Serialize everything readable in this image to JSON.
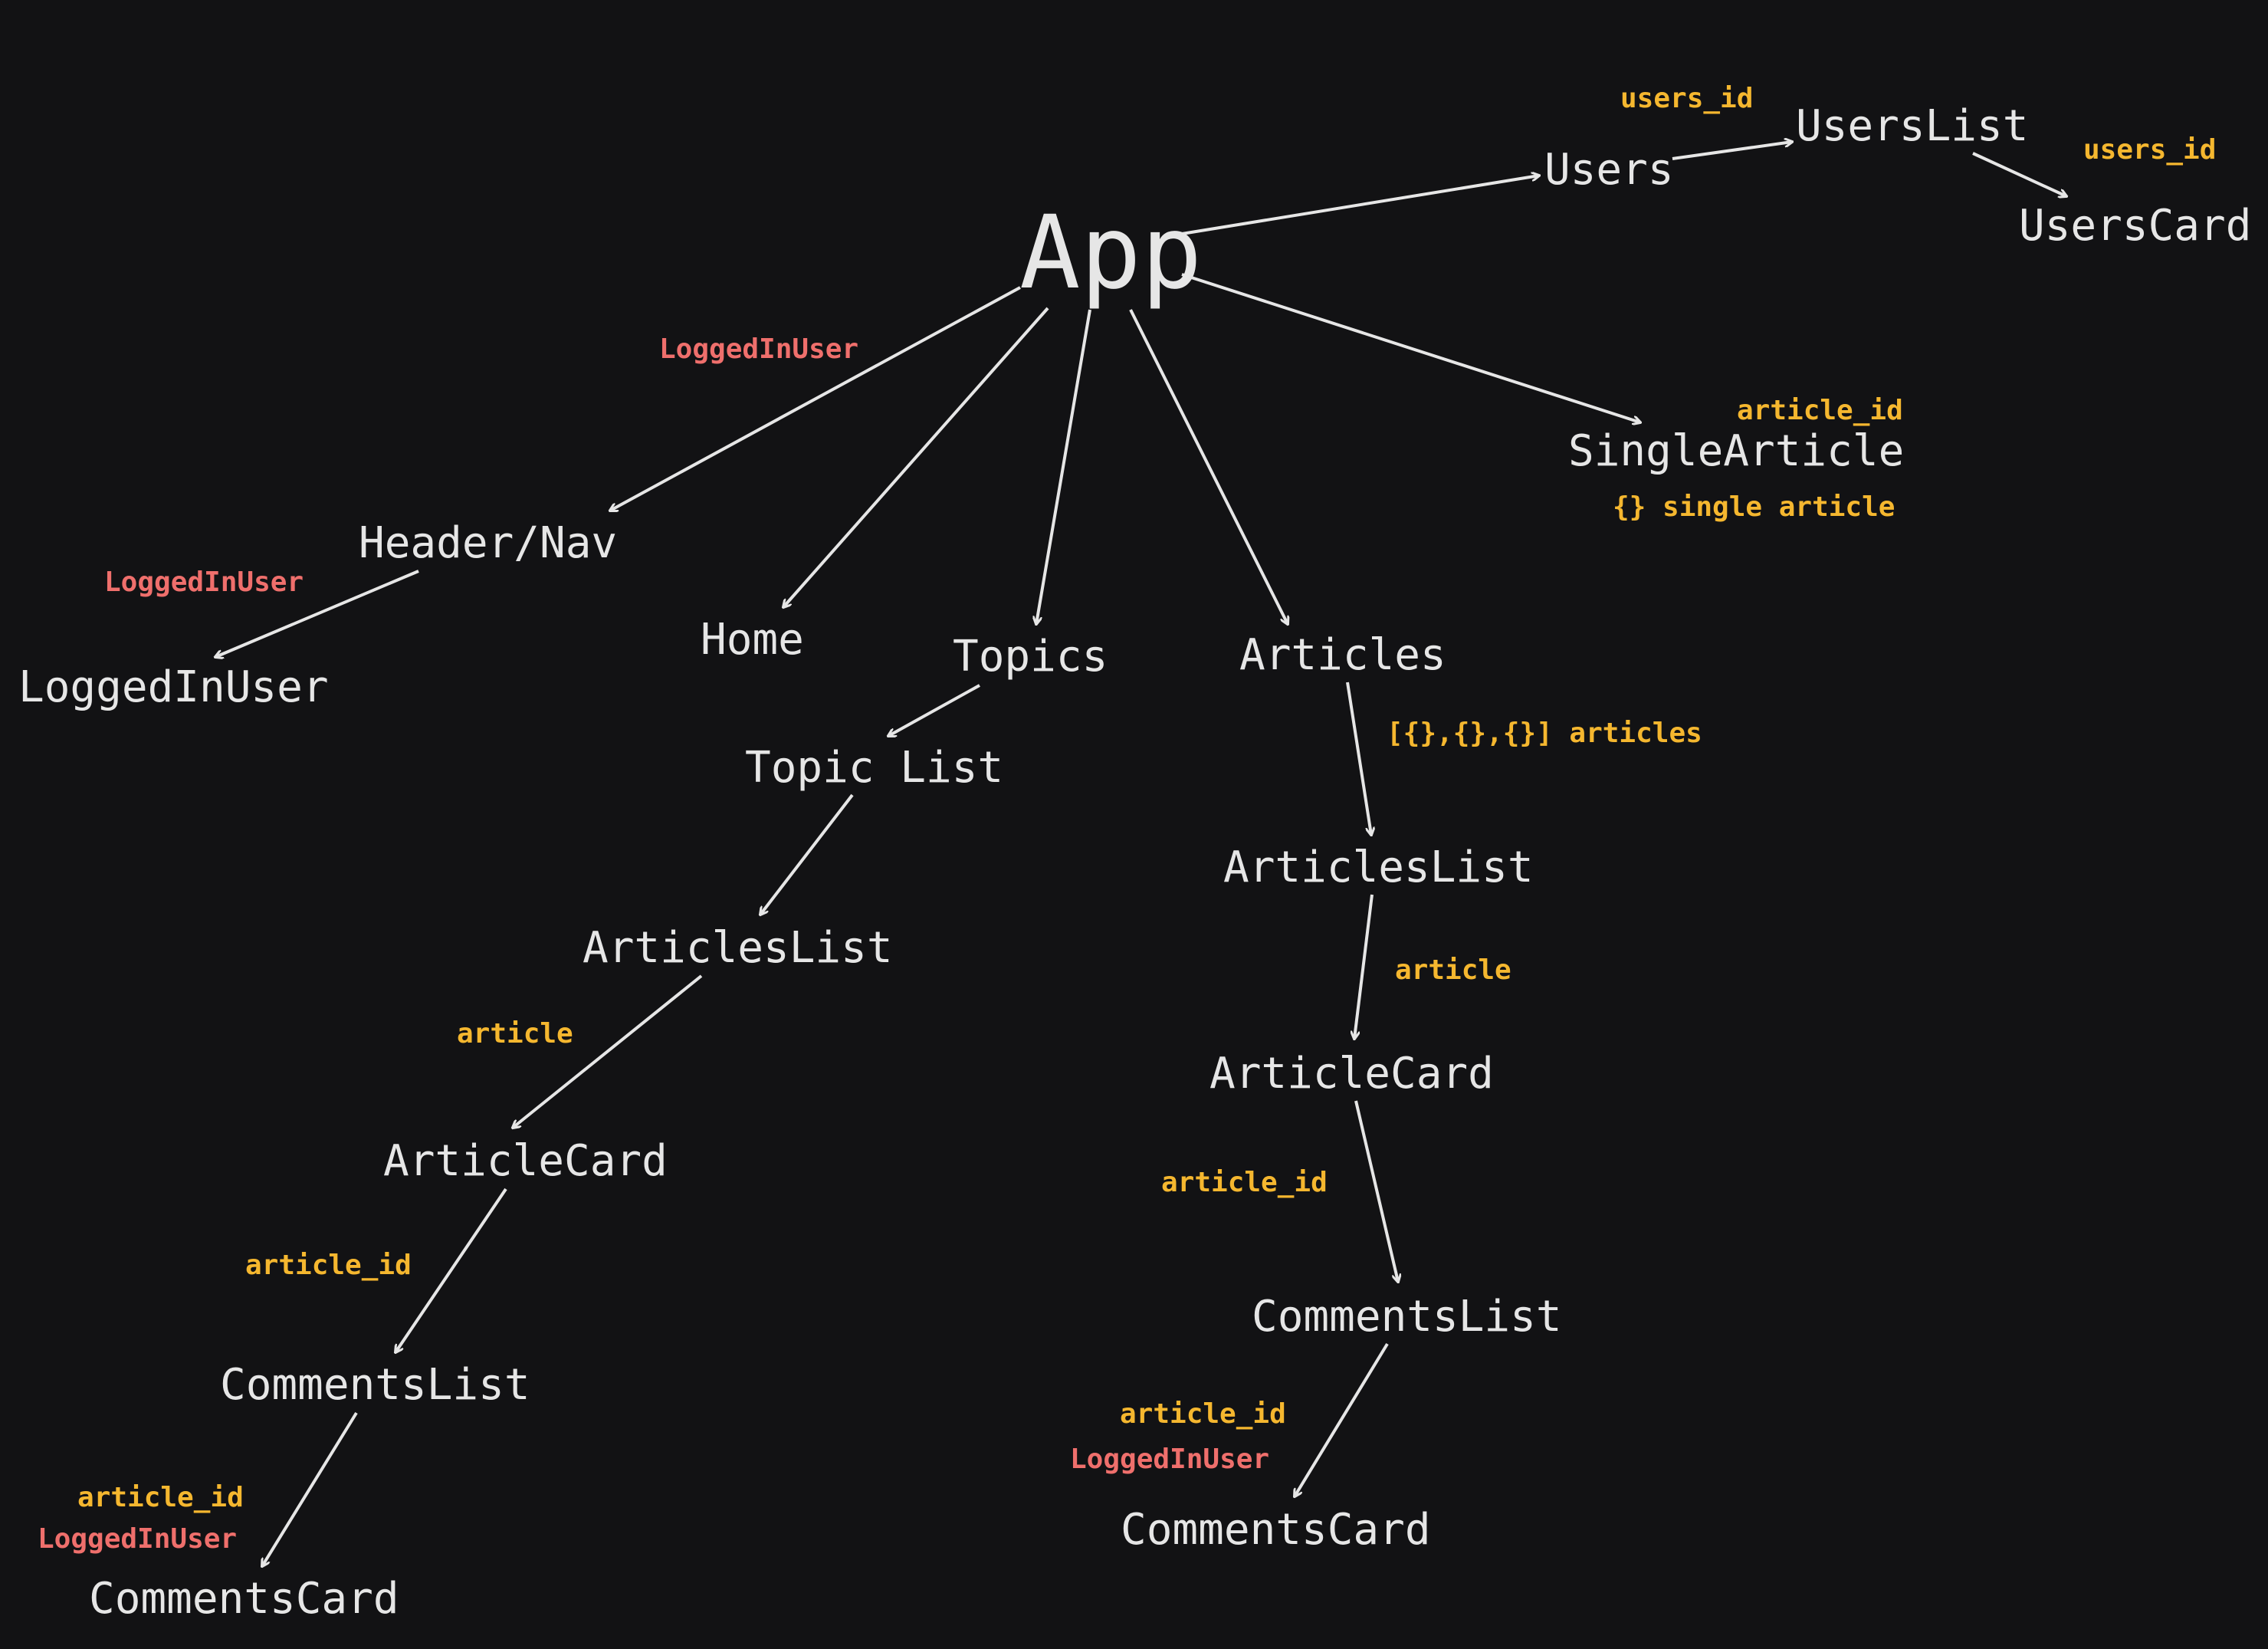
{
  "colors": {
    "background": "#121214",
    "node_text": "#e6e6e6",
    "prop_label": "#f5b72f",
    "user_label": "#ef6f6c",
    "edge": "#e6e6e6"
  },
  "nodes": {
    "app": "App",
    "users": "Users",
    "users_list": "UsersList",
    "users_card": "UsersCard",
    "single_article": "SingleArticle",
    "header_nav": "Header/Nav",
    "logged_in_user": "LoggedInUser",
    "home": "Home",
    "topics": "Topics",
    "topic_list": "Topic List",
    "articles": "Articles",
    "topics_articles_list": "ArticlesList",
    "topics_article_card": "ArticleCard",
    "topics_comments_list": "CommentsList",
    "topics_comments_card": "CommentsCard",
    "articles_articles_list": "ArticlesList",
    "articles_article_card": "ArticleCard",
    "articles_comments_list": "CommentsList",
    "articles_comments_card": "CommentsCard"
  },
  "labels": {
    "users_to_list": "users_id",
    "list_to_card": "users_id",
    "single_article_id": "article_id",
    "single_article_obj": "{} single article",
    "app_to_header": "LoggedInUser",
    "header_to_user": "LoggedInUser",
    "articles_array": "[{},{},{}] articles",
    "articles_list_to_card": "article",
    "articles_card_to_comments": "article_id",
    "articles_comments_card_id": "article_id",
    "articles_comments_card_user": "LoggedInUser",
    "topics_list_to_card": "article",
    "topics_card_to_comments": "article_id",
    "topics_comments_card_id": "article_id",
    "topics_comments_card_user": "LoggedInUser"
  }
}
